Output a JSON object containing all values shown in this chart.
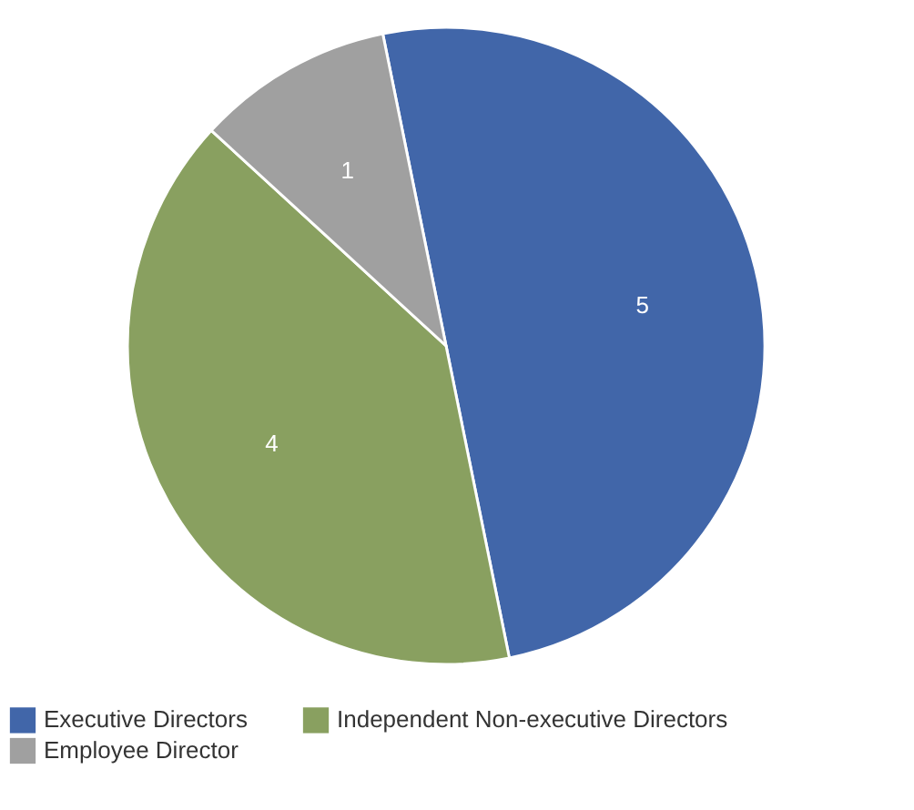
{
  "chart_data": {
    "type": "pie",
    "categories": [
      "Executive Directors",
      "Independent Non-executive Directors",
      "Employee Director"
    ],
    "values": [
      5,
      4,
      1
    ],
    "colors": [
      "#4166a9",
      "#89a060",
      "#a0a0a0"
    ],
    "data_labels": true,
    "legend": "bottom"
  }
}
